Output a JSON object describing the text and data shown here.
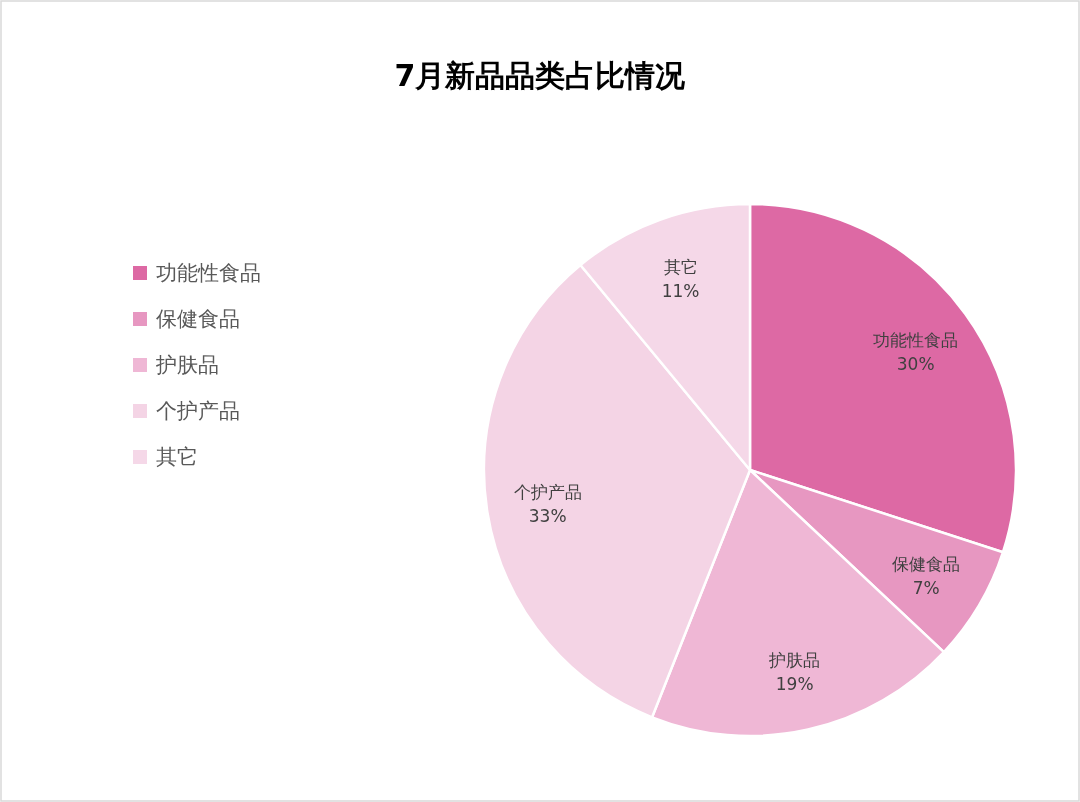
{
  "chart_data": {
    "type": "pie",
    "title": "7月新品品类占比情况",
    "categories": [
      "功能性食品",
      "保健食品",
      "护肤品",
      "个护产品",
      "其它"
    ],
    "values": [
      30,
      7,
      19,
      33,
      11
    ],
    "colors": [
      "#dd69a4",
      "#e797c1",
      "#efb7d5",
      "#f4d4e5",
      "#f5d8e8"
    ],
    "value_labels": [
      "30%",
      "7%",
      "19%",
      "33%",
      "11%"
    ],
    "legend": "left"
  }
}
